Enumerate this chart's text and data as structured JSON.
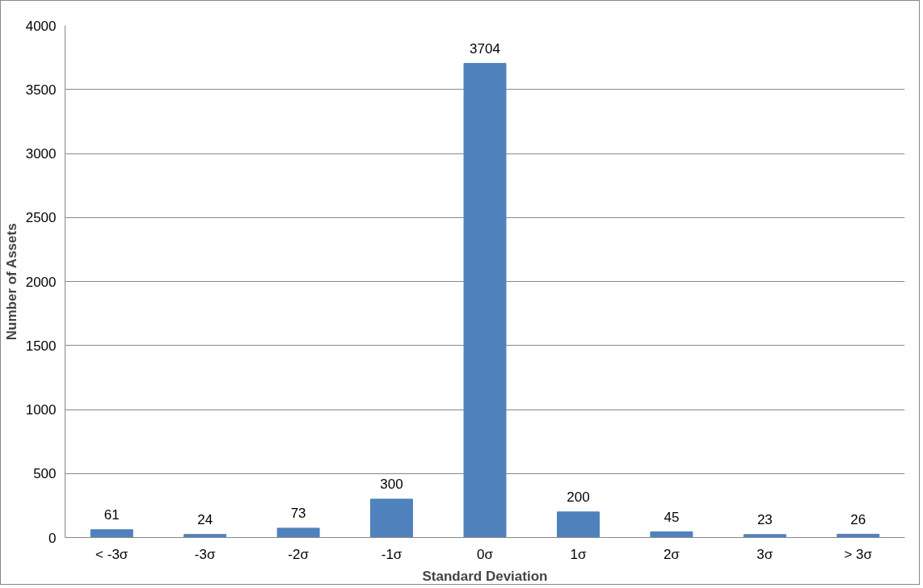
{
  "chart_data": {
    "type": "bar",
    "categories": [
      "< -3σ",
      "-3σ",
      "-2σ",
      "-1σ",
      "0σ",
      "1σ",
      "2σ",
      "3σ",
      "> 3σ"
    ],
    "values": [
      61,
      24,
      73,
      300,
      3704,
      200,
      45,
      23,
      26
    ],
    "color": "#4f81bd",
    "xlabel": "Standard Deviation",
    "ylabel": "Number of Assets",
    "ylim": [
      0,
      4000
    ],
    "yticks": [
      0,
      500,
      1000,
      1500,
      2000,
      2500,
      3000,
      3500,
      4000
    ],
    "grid": "y",
    "data_labels": true
  }
}
